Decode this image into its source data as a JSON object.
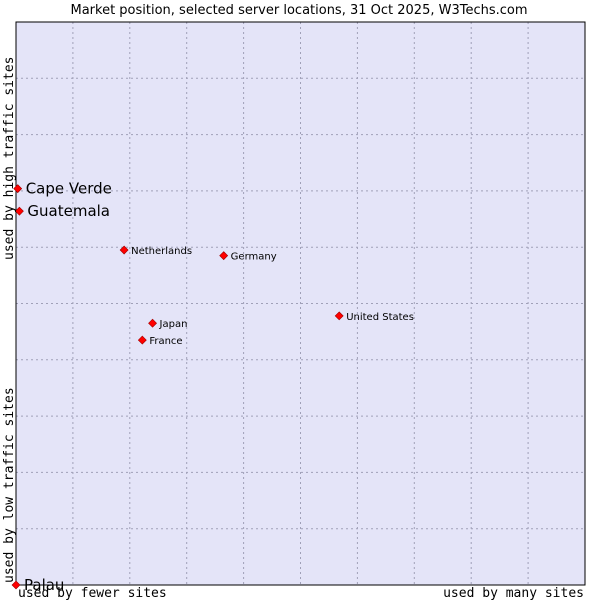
{
  "chart_data": {
    "type": "scatter",
    "title": "Market position, selected server locations, 31 Oct 2025, W3Techs.com",
    "xlabel_left": "used by fewer sites",
    "xlabel_right": "used by many sites",
    "ylabel_top": "used by high traffic sites",
    "ylabel_bottom": "used by low traffic sites",
    "xlim": [
      0,
      100
    ],
    "ylim": [
      0,
      100
    ],
    "grid": true,
    "colors": {
      "plot_bg": "#e4e4f8",
      "point": "#ff0000",
      "border": "#000000"
    },
    "points": [
      {
        "name": "Cape Verde",
        "x": 0.3,
        "y": 70.4,
        "size": "large"
      },
      {
        "name": "Guatemala",
        "x": 0.6,
        "y": 66.4,
        "size": "large"
      },
      {
        "name": "Netherlands",
        "x": 19.0,
        "y": 59.5,
        "size": "small"
      },
      {
        "name": "Germany",
        "x": 36.5,
        "y": 58.5,
        "size": "small"
      },
      {
        "name": "United States",
        "x": 56.8,
        "y": 47.8,
        "size": "small"
      },
      {
        "name": "Japan",
        "x": 24.0,
        "y": 46.5,
        "size": "small"
      },
      {
        "name": "France",
        "x": 22.2,
        "y": 43.5,
        "size": "small"
      },
      {
        "name": "Palau",
        "x": 0.0,
        "y": 0.0,
        "size": "large"
      }
    ]
  }
}
